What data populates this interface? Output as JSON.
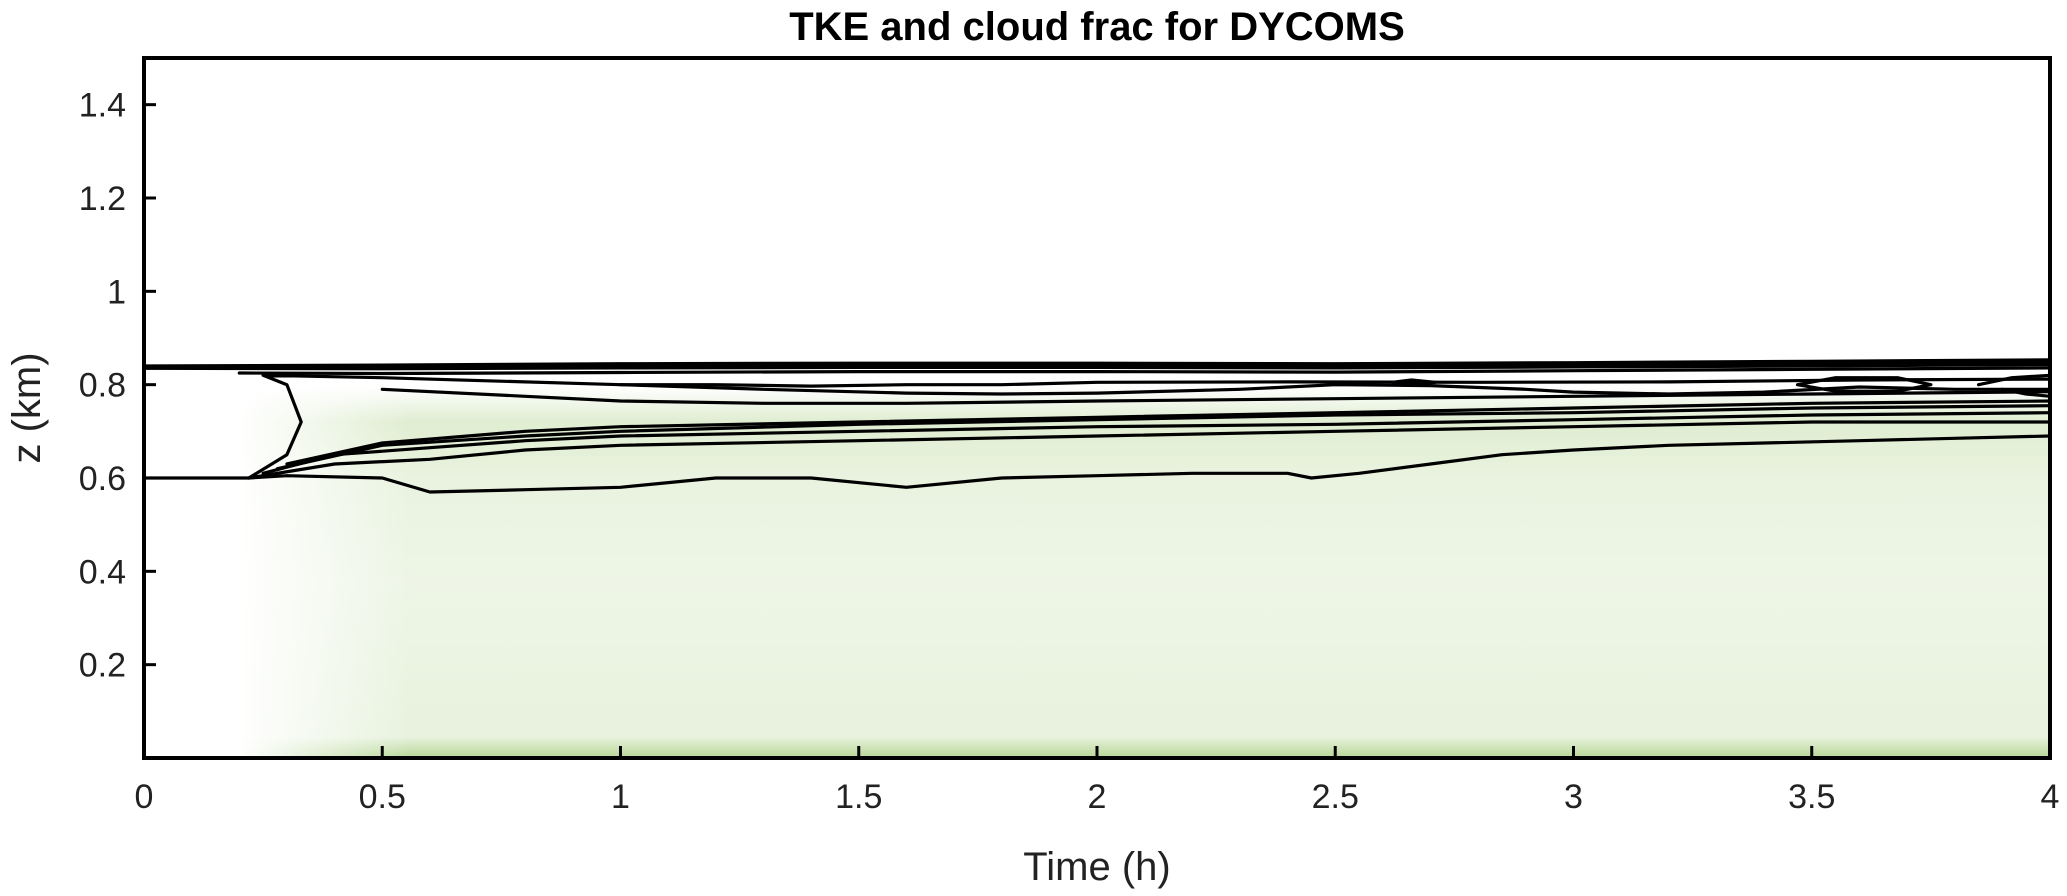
{
  "chart_data": {
    "type": "heatmap",
    "title": "TKE and cloud frac for DYCOMS",
    "xlabel": "Time (h)",
    "ylabel": "z (km)",
    "xlim": [
      0,
      4
    ],
    "ylim": [
      0,
      1.5
    ],
    "xticks": [
      0,
      0.5,
      1,
      1.5,
      2,
      2.5,
      3,
      3.5,
      4
    ],
    "xtick_labels": [
      "0",
      "0.5",
      "1",
      "1.5",
      "2",
      "2.5",
      "3",
      "3.5",
      "4"
    ],
    "yticks": [
      0.2,
      0.4,
      0.6,
      0.8,
      1.0,
      1.2,
      1.4
    ],
    "ytick_labels": [
      "0.2",
      "0.4",
      "0.6",
      "0.8",
      "1",
      "1.2",
      "1.4"
    ],
    "grid": false,
    "heatmap_color": "#6fae2e",
    "heatmap_description_units": "TKE shading, light green, strongest near cloud top (~0.8 km) and surface",
    "cloud_base_km": 0.6,
    "cloud_top_km": 0.84,
    "contours": [
      {
        "points": [
          [
            0,
            0.84
          ],
          [
            0.5,
            0.842
          ],
          [
            1,
            0.845
          ],
          [
            1.5,
            0.846
          ],
          [
            2,
            0.846
          ],
          [
            2.5,
            0.845
          ],
          [
            3,
            0.847
          ],
          [
            3.5,
            0.85
          ],
          [
            4,
            0.853
          ]
        ]
      },
      {
        "points": [
          [
            0,
            0.838
          ],
          [
            0.5,
            0.838
          ],
          [
            1,
            0.84
          ],
          [
            1.5,
            0.841
          ],
          [
            2,
            0.841
          ],
          [
            2.5,
            0.84
          ],
          [
            3,
            0.842
          ],
          [
            3.5,
            0.845
          ],
          [
            4,
            0.848
          ]
        ]
      },
      {
        "points": [
          [
            0,
            0.835
          ],
          [
            0.5,
            0.834
          ],
          [
            1,
            0.836
          ],
          [
            1.5,
            0.837
          ],
          [
            2,
            0.837
          ],
          [
            2.5,
            0.836
          ],
          [
            3,
            0.838
          ],
          [
            3.5,
            0.84
          ],
          [
            4,
            0.843
          ]
        ]
      },
      {
        "points": [
          [
            0.2,
            0.825
          ],
          [
            0.5,
            0.824
          ],
          [
            1,
            0.826
          ],
          [
            1.5,
            0.828
          ],
          [
            2,
            0.828
          ],
          [
            2.5,
            0.827
          ],
          [
            3,
            0.83
          ],
          [
            3.5,
            0.833
          ],
          [
            4,
            0.836
          ]
        ]
      },
      {
        "points": [
          [
            0,
            0.6
          ],
          [
            0.22,
            0.6
          ],
          [
            0.3,
            0.605
          ],
          [
            0.5,
            0.6
          ],
          [
            0.6,
            0.57
          ],
          [
            0.8,
            0.575
          ],
          [
            1,
            0.58
          ],
          [
            1.2,
            0.6
          ],
          [
            1.4,
            0.6
          ],
          [
            1.6,
            0.58
          ],
          [
            1.8,
            0.6
          ],
          [
            2,
            0.605
          ],
          [
            2.2,
            0.61
          ],
          [
            2.4,
            0.61
          ],
          [
            2.45,
            0.6
          ],
          [
            2.55,
            0.61
          ],
          [
            2.7,
            0.63
          ],
          [
            2.85,
            0.65
          ],
          [
            3,
            0.66
          ],
          [
            3.2,
            0.67
          ],
          [
            3.4,
            0.675
          ],
          [
            3.6,
            0.68
          ],
          [
            3.8,
            0.685
          ],
          [
            4,
            0.69
          ]
        ]
      },
      {
        "points": [
          [
            0.22,
            0.6
          ],
          [
            0.4,
            0.63
          ],
          [
            0.6,
            0.64
          ],
          [
            0.8,
            0.66
          ],
          [
            1,
            0.67
          ],
          [
            1.5,
            0.68
          ],
          [
            2,
            0.69
          ],
          [
            2.5,
            0.7
          ],
          [
            3,
            0.71
          ],
          [
            3.5,
            0.72
          ],
          [
            4,
            0.72
          ]
        ]
      },
      {
        "points": [
          [
            0.25,
            0.61
          ],
          [
            0.4,
            0.65
          ],
          [
            0.6,
            0.665
          ],
          [
            0.8,
            0.68
          ],
          [
            1,
            0.69
          ],
          [
            1.5,
            0.7
          ],
          [
            2,
            0.71
          ],
          [
            2.5,
            0.715
          ],
          [
            3,
            0.725
          ],
          [
            3.5,
            0.735
          ],
          [
            4,
            0.74
          ]
        ]
      },
      {
        "points": [
          [
            0.28,
            0.62
          ],
          [
            0.5,
            0.67
          ],
          [
            0.8,
            0.69
          ],
          [
            1,
            0.7
          ],
          [
            1.5,
            0.715
          ],
          [
            2,
            0.725
          ],
          [
            2.5,
            0.735
          ],
          [
            3,
            0.74
          ],
          [
            3.5,
            0.75
          ],
          [
            4,
            0.755
          ]
        ]
      },
      {
        "points": [
          [
            0.3,
            0.63
          ],
          [
            0.5,
            0.675
          ],
          [
            0.8,
            0.7
          ],
          [
            1,
            0.71
          ],
          [
            1.5,
            0.72
          ],
          [
            2,
            0.73
          ],
          [
            2.5,
            0.74
          ],
          [
            3,
            0.75
          ],
          [
            3.5,
            0.76
          ],
          [
            4,
            0.765
          ]
        ]
      },
      {
        "points": [
          [
            0.22,
            0.6
          ],
          [
            0.3,
            0.65
          ],
          [
            0.33,
            0.72
          ],
          [
            0.3,
            0.8
          ],
          [
            0.25,
            0.82
          ],
          [
            0.5,
            0.815
          ],
          [
            1,
            0.8
          ],
          [
            1.3,
            0.79
          ],
          [
            1.6,
            0.782
          ],
          [
            1.8,
            0.78
          ],
          [
            2,
            0.782
          ],
          [
            2.3,
            0.79
          ],
          [
            2.5,
            0.8
          ],
          [
            2.7,
            0.798
          ],
          [
            2.9,
            0.79
          ],
          [
            3,
            0.784
          ],
          [
            3.2,
            0.78
          ],
          [
            3.4,
            0.784
          ],
          [
            3.6,
            0.795
          ],
          [
            3.8,
            0.79
          ],
          [
            4,
            0.79
          ]
        ]
      },
      {
        "points": [
          [
            0.5,
            0.79
          ],
          [
            0.8,
            0.775
          ],
          [
            1,
            0.765
          ],
          [
            1.3,
            0.76
          ],
          [
            1.6,
            0.76
          ],
          [
            2,
            0.765
          ],
          [
            2.5,
            0.77
          ],
          [
            3,
            0.775
          ],
          [
            3.5,
            0.78
          ],
          [
            4,
            0.785
          ]
        ]
      },
      {
        "points": [
          [
            1.0,
            0.8
          ],
          [
            1.2,
            0.8
          ],
          [
            1.4,
            0.797
          ],
          [
            1.6,
            0.8
          ],
          [
            1.8,
            0.8
          ],
          [
            2,
            0.805
          ],
          [
            2.4,
            0.806
          ],
          [
            2.8,
            0.805
          ],
          [
            3.2,
            0.806
          ],
          [
            3.6,
            0.81
          ],
          [
            4,
            0.812
          ]
        ]
      },
      {
        "points": [
          [
            2.62,
            0.805
          ],
          [
            2.66,
            0.81
          ],
          [
            2.71,
            0.805
          ],
          [
            2.66,
            0.8
          ],
          [
            2.62,
            0.805
          ]
        ]
      },
      {
        "points": [
          [
            3.47,
            0.8
          ],
          [
            3.55,
            0.815
          ],
          [
            3.68,
            0.815
          ],
          [
            3.75,
            0.8
          ],
          [
            3.68,
            0.786
          ],
          [
            3.55,
            0.786
          ],
          [
            3.47,
            0.8
          ]
        ]
      },
      {
        "points": [
          [
            3.85,
            0.8
          ],
          [
            3.92,
            0.815
          ],
          [
            4,
            0.82
          ]
        ]
      },
      {
        "points": [
          [
            3.9,
            0.79
          ],
          [
            3.95,
            0.78
          ],
          [
            4,
            0.775
          ]
        ]
      }
    ]
  }
}
